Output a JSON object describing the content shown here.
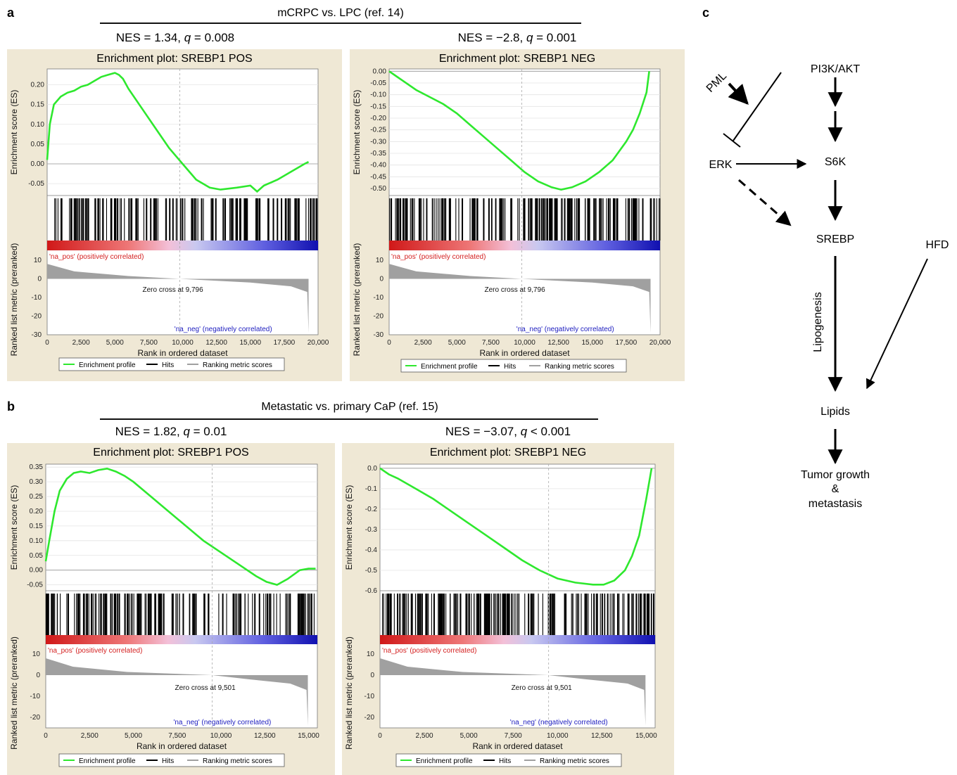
{
  "figure": {
    "a": {
      "label": "a",
      "comparison": "mCRPC vs. LPC (ref. 14)",
      "panels": [
        {
          "nes_prefix": "NES = 1.34, ",
          "q_label": "q",
          "q_text": " = 0.008",
          "title": "Enrichment plot: SREBP1 POS",
          "es_ylabel": "Enrichment score (ES)",
          "es_ticks": [
            "0.20",
            "0.15",
            "0.10",
            "0.05",
            "0.00",
            "-0.05"
          ],
          "es_range": [
            -0.08,
            0.24
          ],
          "rank_ylabel": "Ranked list metric (preranked)",
          "rank_ticks": [
            "10",
            "0",
            "-10",
            "-20",
            "-30"
          ],
          "pos_label": "'na_pos' (positively correlated)",
          "neg_label": "'na_neg' (negatively correlated)",
          "zero_cross": "Zero cross at 9,796",
          "x_ticks": [
            "0",
            "2,500",
            "5,000",
            "7,500",
            "10,000",
            "12,500",
            "15,000",
            "17,500",
            "20,000"
          ],
          "xlabel": "Rank in ordered dataset",
          "legend": [
            "Enrichment profile",
            "Hits",
            "Ranking metric scores"
          ]
        },
        {
          "nes_prefix": "NES = −2.8, ",
          "q_label": "q",
          "q_text": " = 0.001",
          "title": "Enrichment plot: SREBP1 NEG",
          "es_ylabel": "Enrichment score (ES)",
          "es_ticks": [
            "0.00",
            "-0.05",
            "-0.10",
            "-0.15",
            "-0.20",
            "-0.25",
            "-0.30",
            "-0.35",
            "-0.40",
            "-0.45",
            "-0.50"
          ],
          "es_range": [
            -0.53,
            0.01
          ],
          "rank_ylabel": "Ranked list metric (preranked)",
          "rank_ticks": [
            "10",
            "0",
            "-10",
            "-20",
            "-30"
          ],
          "pos_label": "'na_pos' (positively correlated)",
          "neg_label": "'na_neg' (negatively correlated)",
          "zero_cross": "Zero cross at 9,796",
          "x_ticks": [
            "0",
            "2,500",
            "5,000",
            "7,500",
            "10,000",
            "12,500",
            "15,000",
            "17,500",
            "20,000"
          ],
          "xlabel": "Rank in ordered dataset",
          "legend": [
            "Enrichment profile",
            "Hits",
            "Ranking metric scores"
          ]
        }
      ]
    },
    "b": {
      "label": "b",
      "comparison": "Metastatic vs. primary CaP (ref. 15)",
      "panels": [
        {
          "nes_prefix": "NES = 1.82, ",
          "q_label": "q",
          "q_text": " = 0.01",
          "title": "Enrichment plot: SREBP1 POS",
          "es_ylabel": "Enrichment score (ES)",
          "es_ticks": [
            "0.35",
            "0.30",
            "0.25",
            "0.20",
            "0.15",
            "0.10",
            "0.05",
            "0.00",
            "-0.05"
          ],
          "es_range": [
            -0.07,
            0.36
          ],
          "rank_ylabel": "Ranked list metric (preranked)",
          "rank_ticks": [
            "10",
            "0",
            "-10",
            "-20"
          ],
          "pos_label": "'na_pos' (positively correlated)",
          "neg_label": "'na_neg' (negatively correlated)",
          "zero_cross": "Zero cross at 9,501",
          "x_ticks": [
            "0",
            "2,500",
            "5,000",
            "7,500",
            "10,000",
            "12,500",
            "15,000"
          ],
          "xlabel": "Rank in ordered dataset",
          "legend": [
            "Enrichment profile",
            "Hits",
            "Ranking metric scores"
          ]
        },
        {
          "nes_prefix": "NES = −3.07, ",
          "q_label": "q",
          "q_text": " < 0.001",
          "title": "Enrichment plot: SREBP1 NEG",
          "es_ylabel": "Enrichment score (ES)",
          "es_ticks": [
            "0.0",
            "-0.1",
            "-0.2",
            "-0.3",
            "-0.4",
            "-0.5",
            "-0.6"
          ],
          "es_range": [
            -0.6,
            0.02
          ],
          "rank_ylabel": "Ranked list metric (preranked)",
          "rank_ticks": [
            "10",
            "0",
            "-10",
            "-20"
          ],
          "pos_label": "'na_pos' (positively correlated)",
          "neg_label": "'na_neg' (negatively correlated)",
          "zero_cross": "Zero cross at 9,501",
          "x_ticks": [
            "0",
            "2,500",
            "5,000",
            "7,500",
            "10,000",
            "12,500",
            "15,000"
          ],
          "xlabel": "Rank in ordered dataset",
          "legend": [
            "Enrichment profile",
            "Hits",
            "Ranking metric scores"
          ]
        }
      ]
    },
    "c": {
      "label": "c",
      "nodes": {
        "pml": "PML",
        "pi3k": "PI3K/AKT",
        "erk": "ERK",
        "s6k": "S6K",
        "srebp": "SREBP",
        "hfd": "HFD",
        "lipogenesis": "Lipogenesis",
        "lipids": "Lipids",
        "tumor1": "Tumor growth",
        "tumor2": "&",
        "tumor3": "metastasis"
      }
    },
    "colors": {
      "profile": "#2ee82e",
      "hits": "#000000",
      "metric": "#a0a0a0",
      "panel_bg": "#efe8d5",
      "pos": "#d42020",
      "neg": "#2020c0"
    }
  },
  "chart_data": [
    {
      "type": "line",
      "title": "Enrichment plot: SREBP1 POS",
      "xlabel": "Rank in ordered dataset",
      "ylabel": "Enrichment score (ES)",
      "xlim": [
        0,
        20000
      ],
      "ylim": [
        -0.08,
        0.24
      ],
      "series": [
        {
          "name": "Enrichment profile",
          "x": [
            0,
            200,
            500,
            1000,
            1500,
            2000,
            2500,
            3000,
            3500,
            4000,
            4500,
            5000,
            5300,
            5600,
            6000,
            7000,
            8000,
            9000,
            10000,
            11000,
            12000,
            12800,
            14000,
            15000,
            15500,
            16000,
            17000,
            18000,
            19000,
            19300
          ],
          "y": [
            0.01,
            0.1,
            0.15,
            0.17,
            0.18,
            0.185,
            0.195,
            0.2,
            0.21,
            0.22,
            0.225,
            0.23,
            0.225,
            0.215,
            0.19,
            0.14,
            0.09,
            0.04,
            0.0,
            -0.04,
            -0.06,
            -0.065,
            -0.06,
            -0.055,
            -0.07,
            -0.055,
            -0.04,
            -0.02,
            0.0,
            0.005
          ]
        }
      ],
      "rank_metric_range": [
        -30,
        10
      ],
      "zero_cross": 9796
    },
    {
      "type": "line",
      "title": "Enrichment plot: SREBP1 NEG",
      "xlabel": "Rank in ordered dataset",
      "ylabel": "Enrichment score (ES)",
      "xlim": [
        0,
        20000
      ],
      "ylim": [
        -0.53,
        0.01
      ],
      "series": [
        {
          "name": "Enrichment profile",
          "x": [
            0,
            500,
            1000,
            2000,
            3000,
            4000,
            5000,
            6000,
            7000,
            8000,
            9000,
            10000,
            11000,
            12000,
            12700,
            13500,
            14500,
            15500,
            16500,
            17500,
            18000,
            18500,
            19000,
            19200
          ],
          "y": [
            0.0,
            -0.02,
            -0.04,
            -0.08,
            -0.11,
            -0.14,
            -0.18,
            -0.23,
            -0.28,
            -0.33,
            -0.38,
            -0.43,
            -0.47,
            -0.495,
            -0.505,
            -0.495,
            -0.47,
            -0.43,
            -0.38,
            -0.3,
            -0.25,
            -0.18,
            -0.09,
            0.0
          ]
        }
      ],
      "rank_metric_range": [
        -30,
        10
      ],
      "zero_cross": 9796
    },
    {
      "type": "line",
      "title": "Enrichment plot: SREBP1 POS",
      "xlabel": "Rank in ordered dataset",
      "ylabel": "Enrichment score (ES)",
      "xlim": [
        0,
        15500
      ],
      "ylim": [
        -0.07,
        0.36
      ],
      "series": [
        {
          "name": "Enrichment profile",
          "x": [
            0,
            200,
            500,
            800,
            1200,
            1600,
            2000,
            2500,
            3000,
            3500,
            4000,
            4500,
            5000,
            6000,
            7000,
            8000,
            9000,
            10000,
            11000,
            12000,
            12600,
            13200,
            13800,
            14500,
            15000,
            15400
          ],
          "y": [
            0.03,
            0.1,
            0.2,
            0.27,
            0.31,
            0.33,
            0.335,
            0.33,
            0.34,
            0.345,
            0.335,
            0.32,
            0.3,
            0.25,
            0.2,
            0.15,
            0.1,
            0.06,
            0.02,
            -0.02,
            -0.04,
            -0.05,
            -0.03,
            0.0,
            0.005,
            0.005
          ]
        }
      ],
      "rank_metric_range": [
        -25,
        10
      ],
      "zero_cross": 9501
    },
    {
      "type": "line",
      "title": "Enrichment plot: SREBP1 NEG",
      "xlabel": "Rank in ordered dataset",
      "ylabel": "Enrichment score (ES)",
      "xlim": [
        0,
        15500
      ],
      "ylim": [
        -0.6,
        0.02
      ],
      "series": [
        {
          "name": "Enrichment profile",
          "x": [
            0,
            500,
            1000,
            2000,
            3000,
            4000,
            5000,
            6000,
            7000,
            8000,
            9000,
            10000,
            11000,
            12000,
            12600,
            13200,
            13800,
            14200,
            14600,
            15000,
            15300
          ],
          "y": [
            0.0,
            -0.03,
            -0.05,
            -0.1,
            -0.15,
            -0.21,
            -0.27,
            -0.33,
            -0.39,
            -0.45,
            -0.5,
            -0.54,
            -0.56,
            -0.57,
            -0.57,
            -0.55,
            -0.5,
            -0.43,
            -0.33,
            -0.15,
            0.0
          ]
        }
      ],
      "rank_metric_range": [
        -25,
        10
      ],
      "zero_cross": 9501
    }
  ]
}
